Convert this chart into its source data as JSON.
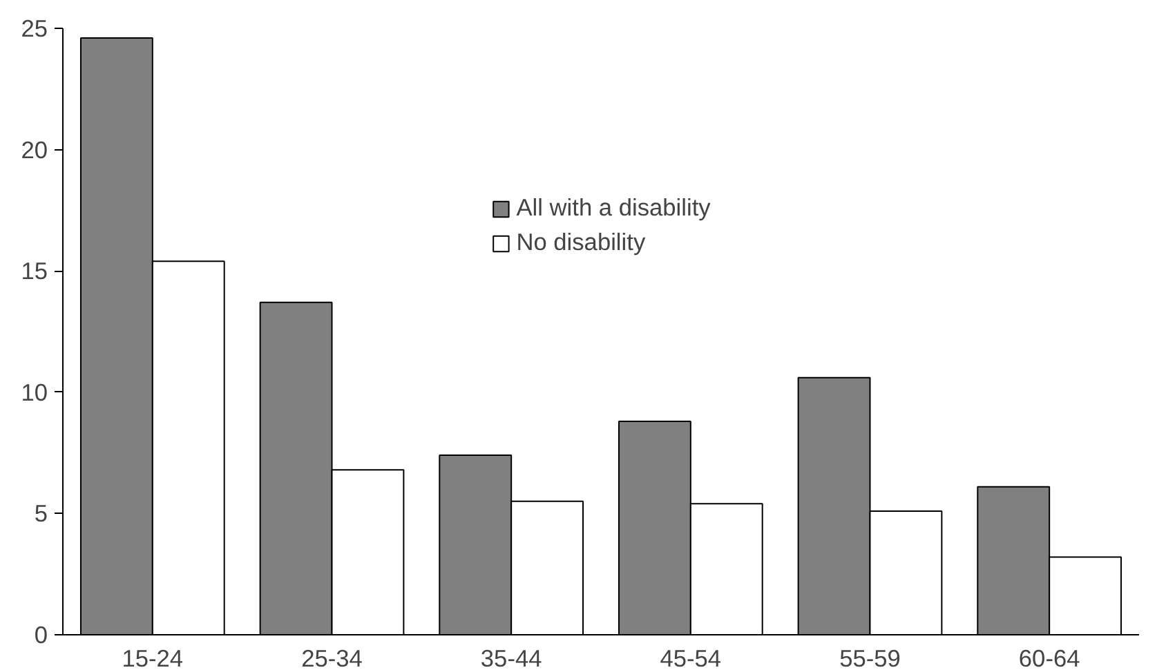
{
  "chart_data": {
    "type": "bar",
    "categories": [
      "15-24",
      "25-34",
      "35-44",
      "45-54",
      "55-59",
      "60-64"
    ],
    "series": [
      {
        "name": "All with a disability",
        "color": "#808080",
        "values": [
          24.6,
          13.7,
          7.4,
          8.8,
          10.6,
          6.1
        ]
      },
      {
        "name": "No disability",
        "color": "#ffffff",
        "values": [
          15.4,
          6.8,
          5.5,
          5.4,
          5.1,
          3.2
        ]
      }
    ],
    "ylim": [
      0,
      25
    ],
    "yticks": [
      0,
      5,
      10,
      15,
      20,
      25
    ],
    "grid": false,
    "legend": "top"
  }
}
